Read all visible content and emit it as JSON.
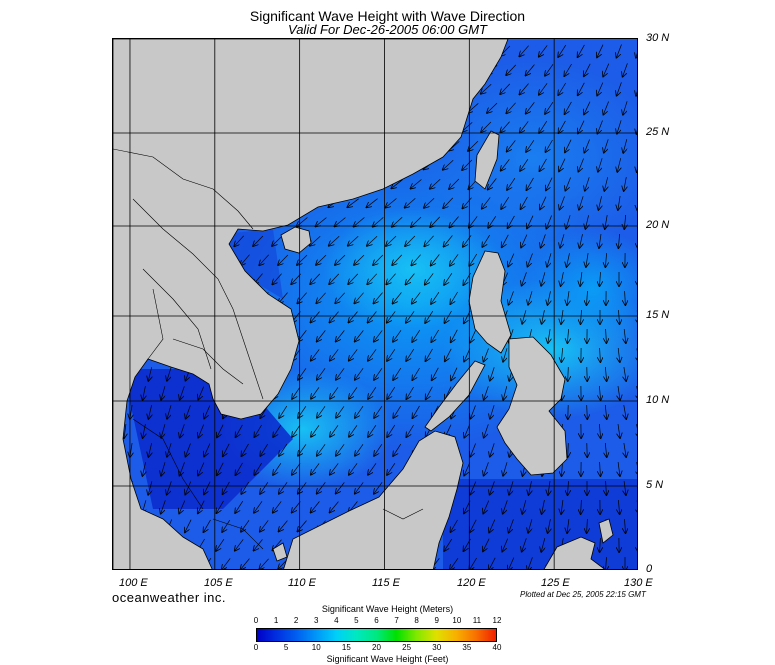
{
  "header": {
    "title": "Significant Wave Height with Wave Direction",
    "subtitle": "Valid For Dec-26-2005 06:00 GMT"
  },
  "map": {
    "lon_range": [
      99,
      130
    ],
    "lat_range": [
      0,
      30
    ],
    "lat_labels": [
      "30 N",
      "25 N",
      "20 N",
      "15 N",
      "10 N",
      "5 N",
      "0"
    ],
    "lon_labels": [
      "100 E",
      "105 E",
      "110 E",
      "115 E",
      "120 E",
      "125 E",
      "130 E"
    ],
    "land_color": "#c8c8c8",
    "wave_direction": "arrows pointing toward southwest"
  },
  "footer": {
    "brand": "oceanweather inc.",
    "plotted": "Plotted at Dec 25, 2005 22:15 GMT"
  },
  "legend": {
    "title_meters": "Significant Wave Height (Meters)",
    "title_feet": "Significant Wave Height (Feet)",
    "meter_ticks": [
      "0",
      "1",
      "2",
      "3",
      "4",
      "5",
      "6",
      "7",
      "8",
      "9",
      "10",
      "11",
      "12"
    ],
    "feet_ticks": [
      "0",
      "5",
      "10",
      "15",
      "20",
      "25",
      "30",
      "35",
      "40"
    ],
    "colors": [
      "#0000c8",
      "#0030e0",
      "#0060f0",
      "#0098f8",
      "#00d0f8",
      "#00e8c0",
      "#00e880",
      "#00e000",
      "#80e800",
      "#e0e000",
      "#f8b000",
      "#f87000",
      "#f02000"
    ]
  }
}
